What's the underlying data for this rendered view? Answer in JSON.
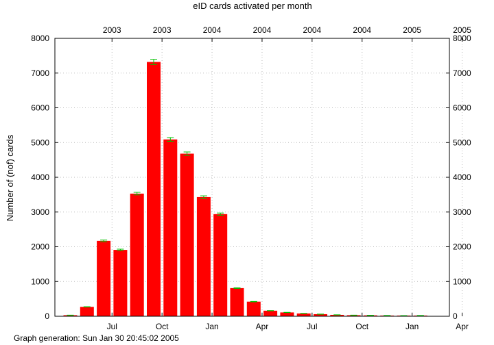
{
  "chart_data": {
    "type": "bar",
    "title": "eID cards activated per month",
    "ylabel": "Number of (nof) cards",
    "xlabel": "",
    "ylim": [
      0,
      8000
    ],
    "y_ticks": [
      0,
      1000,
      2000,
      3000,
      4000,
      5000,
      6000,
      7000,
      8000
    ],
    "y2_ticks": [
      0,
      1000,
      2000,
      3000,
      4000,
      5000,
      6000,
      7000,
      8000
    ],
    "x_month_ticks": [
      "Jul",
      "Oct",
      "Jan",
      "Apr",
      "Jul",
      "Oct",
      "Jan",
      "Apr"
    ],
    "x_year_ticks": [
      "2003",
      "2003",
      "2004",
      "2004",
      "2004",
      "2004",
      "2005",
      "2005"
    ],
    "categories": [
      "2003-04",
      "2003-05",
      "2003-06",
      "2003-07",
      "2003-08",
      "2003-09",
      "2003-10",
      "2003-11",
      "2003-12",
      "2004-01",
      "2004-02",
      "2004-03",
      "2004-04",
      "2004-05",
      "2004-06",
      "2004-07",
      "2004-08",
      "2004-09",
      "2004-10",
      "2004-11",
      "2004-12",
      "2005-01"
    ],
    "values": [
      30,
      270,
      2170,
      1910,
      3530,
      7320,
      5090,
      4680,
      3430,
      2940,
      810,
      420,
      160,
      110,
      80,
      60,
      40,
      30,
      25,
      20,
      15,
      20
    ],
    "grid": true,
    "bar_color": "#ff0000",
    "errorbar_color": "#00c000"
  },
  "footer": {
    "text": "Graph generation: Sun Jan 30 20:45:02 2005"
  }
}
